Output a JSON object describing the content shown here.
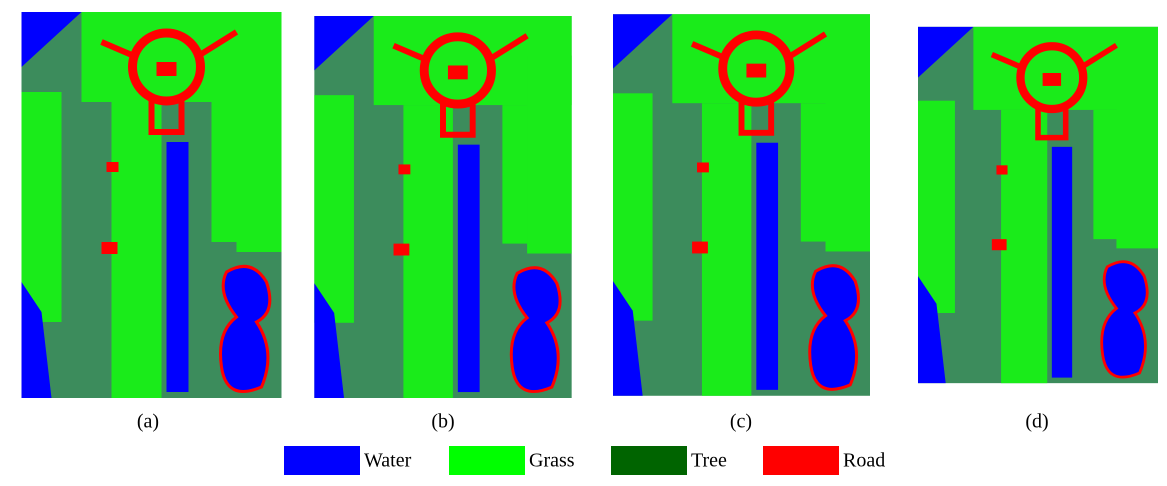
{
  "panels": [
    {
      "label": "(a)"
    },
    {
      "label": "(b)"
    },
    {
      "label": "(c)"
    },
    {
      "label": "(d)"
    }
  ],
  "legend": [
    {
      "name": "Water",
      "color": "#0000ff"
    },
    {
      "name": "Grass",
      "color": "#00ff00"
    },
    {
      "name": "Tree",
      "color": "#006400"
    },
    {
      "name": "Road",
      "color": "#ff0000"
    }
  ]
}
